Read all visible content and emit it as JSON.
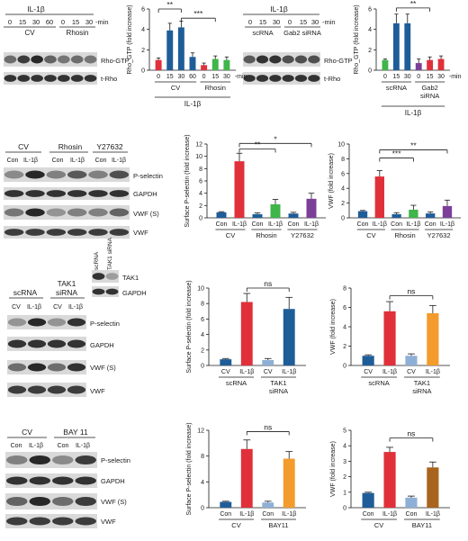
{
  "blots": {
    "a": {
      "treatment": "IL-1β",
      "unit": "-min",
      "times": [
        "0",
        "15",
        "30",
        "60",
        "0",
        "15",
        "30"
      ],
      "groups": [
        "CV",
        "Rhosin"
      ],
      "rows": [
        "Rho-GTP",
        "t-Rho"
      ]
    },
    "b": {
      "treatment": "IL-1β",
      "unit": "-min",
      "times": [
        "0",
        "15",
        "30",
        "0",
        "15",
        "30"
      ],
      "groups": [
        "scRNA",
        "Gab2 siRNA"
      ],
      "rows": [
        "Rho-GTP",
        "t-Rho"
      ]
    },
    "c": {
      "groups": [
        "CV",
        "Rhosin",
        "Y27632"
      ],
      "lanes": [
        "Con",
        "IL-1β",
        "Con",
        "IL-1β",
        "Con",
        "IL-1β"
      ],
      "rows": [
        "P-selectin",
        "GAPDH",
        "VWF (S)",
        "VWF"
      ]
    },
    "d": {
      "groups": [
        "scRNA",
        "TAK1 siRNA"
      ],
      "lanes": [
        "CV",
        "IL-1β",
        "CV",
        "IL-1β"
      ],
      "rows": [
        "P-selectin",
        "GAPDH",
        "VWF (S)",
        "VWF"
      ],
      "inset_lanes": [
        "scRNA",
        "TAK1 siRNA"
      ],
      "inset_rows": [
        "TAK1",
        "GAPDH"
      ]
    },
    "e": {
      "groups": [
        "CV",
        "BAY 11"
      ],
      "lanes": [
        "Con",
        "IL-1β",
        "Con",
        "IL-1β"
      ],
      "rows": [
        "P-selectin",
        "GAPDH",
        "VWF (S)",
        "VWF"
      ]
    }
  },
  "chart_data": [
    {
      "id": "rho_rhosin",
      "type": "bar",
      "title": "",
      "ylabel": "Rho_GTP (fold increase)",
      "ylim": [
        0,
        6
      ],
      "yticks": [
        0,
        2,
        4,
        6
      ],
      "categories": [
        "0",
        "15",
        "30",
        "60",
        "0",
        "15",
        "30"
      ],
      "values": [
        1.0,
        3.9,
        4.2,
        1.3,
        0.5,
        1.1,
        1.0
      ],
      "errors": [
        0.2,
        0.7,
        0.6,
        0.4,
        0.2,
        0.3,
        0.3
      ],
      "colors": [
        "#e0303a",
        "#1f5d99",
        "#1f5d99",
        "#1f5d99",
        "#e0303a",
        "#3fb54a",
        "#3fb54a"
      ],
      "group_labels": [
        "CV",
        "Rhosin"
      ],
      "unit": "-min",
      "treatment": "IL-1β",
      "significance": [
        "**",
        "***"
      ]
    },
    {
      "id": "rho_gab2",
      "type": "bar",
      "title": "",
      "ylabel": "Rho_GTP (fold increase)",
      "ylim": [
        0,
        6
      ],
      "yticks": [
        0,
        2,
        4,
        6
      ],
      "categories": [
        "0",
        "15",
        "30",
        "0",
        "15",
        "30"
      ],
      "values": [
        1.0,
        4.6,
        4.6,
        0.7,
        1.0,
        1.1
      ],
      "errors": [
        0.1,
        0.9,
        0.9,
        0.4,
        0.3,
        0.3
      ],
      "colors": [
        "#3fb54a",
        "#1f5d99",
        "#1f5d99",
        "#7b3f99",
        "#e0303a",
        "#e0303a"
      ],
      "group_labels": [
        "scRNA",
        "Gab2 siRNA"
      ],
      "unit": "-min",
      "treatment": "IL-1β",
      "significance": [
        "**"
      ]
    },
    {
      "id": "psel_rhosin",
      "type": "bar",
      "title": "",
      "ylabel": "Surface P-selectin (fold increase)",
      "ylim": [
        0,
        12
      ],
      "yticks": [
        0,
        2,
        4,
        6,
        8,
        10,
        12
      ],
      "categories": [
        "Con",
        "IL-1β",
        "Con",
        "IL-1β",
        "Con",
        "IL-1β"
      ],
      "values": [
        0.9,
        9.2,
        0.6,
        2.2,
        0.7,
        3.1
      ],
      "errors": [
        0.1,
        1.3,
        0.2,
        0.8,
        0.2,
        0.9
      ],
      "colors": [
        "#1f5d99",
        "#e0303a",
        "#1f5d99",
        "#3fb54a",
        "#1f5d99",
        "#7b3f99"
      ],
      "group_labels": [
        "CV",
        "Rhosin",
        "Y27632"
      ],
      "significance": [
        "**",
        "*"
      ]
    },
    {
      "id": "vwf_rhosin",
      "type": "bar",
      "title": "",
      "ylabel": "VWF (fold increase)",
      "ylim": [
        0,
        10
      ],
      "yticks": [
        0,
        2,
        4,
        6,
        8,
        10
      ],
      "categories": [
        "Con",
        "IL-1β",
        "Con",
        "IL-1β",
        "Con",
        "IL-1β"
      ],
      "values": [
        0.9,
        5.6,
        0.5,
        1.1,
        0.6,
        1.6
      ],
      "errors": [
        0.1,
        0.8,
        0.2,
        0.6,
        0.2,
        0.8
      ],
      "colors": [
        "#1f5d99",
        "#e0303a",
        "#1f5d99",
        "#3fb54a",
        "#1f5d99",
        "#7b3f99"
      ],
      "group_labels": [
        "CV",
        "Rhosin",
        "Y27632"
      ],
      "significance": [
        "***",
        "**"
      ]
    },
    {
      "id": "psel_tak1",
      "type": "bar",
      "title": "",
      "ylabel": "Surface P-selectin (fold increase)",
      "ylim": [
        0,
        10
      ],
      "yticks": [
        0,
        2,
        4,
        6,
        8,
        10
      ],
      "categories": [
        "CV",
        "IL-1β",
        "CV",
        "IL-1β"
      ],
      "values": [
        0.8,
        8.2,
        0.7,
        7.3
      ],
      "errors": [
        0.1,
        1.1,
        0.2,
        1.5
      ],
      "colors": [
        "#1f5d99",
        "#e0303a",
        "#8fb0d6",
        "#1f5d99"
      ],
      "group_labels": [
        "scRNA",
        "TAK1 siRNA"
      ],
      "significance": [
        "ns"
      ]
    },
    {
      "id": "vwf_tak1",
      "type": "bar",
      "title": "",
      "ylabel": "VWF (fold increase)",
      "ylim": [
        0,
        8
      ],
      "yticks": [
        0,
        2,
        4,
        6,
        8
      ],
      "categories": [
        "CV",
        "IL-1β",
        "CV",
        "IL-1β"
      ],
      "values": [
        1.0,
        5.6,
        1.0,
        5.4
      ],
      "errors": [
        0.1,
        1.0,
        0.2,
        0.8
      ],
      "colors": [
        "#1f5d99",
        "#e0303a",
        "#8fb0d6",
        "#f39b2c"
      ],
      "group_labels": [
        "scRNA",
        "TAK1 siRNA"
      ],
      "significance": [
        "ns"
      ]
    },
    {
      "id": "psel_bay",
      "type": "bar",
      "title": "",
      "ylabel": "Surface P-selectin (fold increase)",
      "ylim": [
        0,
        12
      ],
      "yticks": [
        0,
        4,
        8,
        12
      ],
      "categories": [
        "Con",
        "IL-1β",
        "Con",
        "IL-1β"
      ],
      "values": [
        0.9,
        9.1,
        0.8,
        7.6
      ],
      "errors": [
        0.1,
        1.4,
        0.2,
        1.1
      ],
      "colors": [
        "#1f5d99",
        "#e0303a",
        "#8fb0d6",
        "#f39b2c"
      ],
      "group_labels": [
        "CV",
        "BAY11"
      ],
      "significance": [
        "ns"
      ]
    },
    {
      "id": "vwf_bay",
      "type": "bar",
      "title": "",
      "ylabel": "VWF (fold increase)",
      "ylim": [
        0,
        5
      ],
      "yticks": [
        0,
        1,
        2,
        3,
        4,
        5
      ],
      "categories": [
        "Con",
        "IL-1β",
        "Con",
        "IL-1β"
      ],
      "values": [
        0.95,
        3.6,
        0.65,
        2.6
      ],
      "errors": [
        0.05,
        0.3,
        0.1,
        0.35
      ],
      "colors": [
        "#1f5d99",
        "#e0303a",
        "#8fb0d6",
        "#a8641f"
      ],
      "group_labels": [
        "CV",
        "BAY11"
      ],
      "significance": [
        "ns"
      ]
    }
  ]
}
